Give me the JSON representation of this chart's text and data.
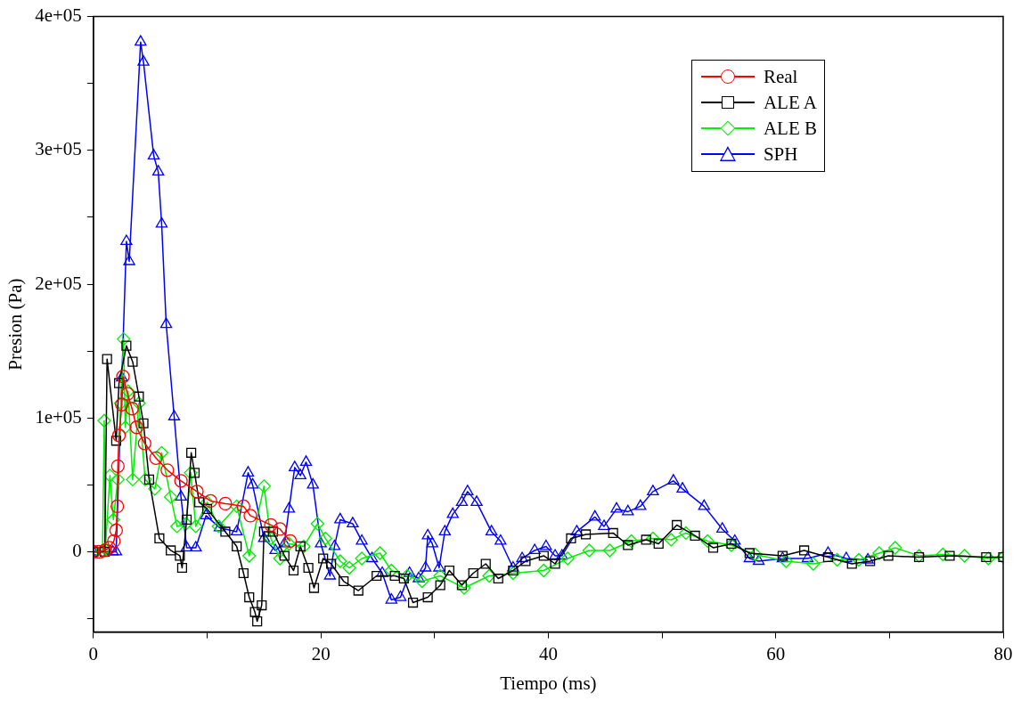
{
  "chart_data": {
    "type": "line",
    "xlabel": "Tiempo (ms)",
    "ylabel": "Presion (Pa)",
    "xlim": [
      0,
      80
    ],
    "ylim": [
      -60000,
      400000
    ],
    "xticks": [
      0,
      {
        "value": 10,
        "label": null
      },
      20,
      {
        "value": 30,
        "label": null
      },
      40,
      {
        "value": 50,
        "label": null
      },
      60,
      {
        "value": 70,
        "label": null
      },
      80
    ],
    "yticks": [
      {
        "value": -50000,
        "label": null
      },
      {
        "value": 0,
        "label": "0"
      },
      {
        "value": 50000,
        "label": null
      },
      {
        "value": 100000,
        "label": "1e+05"
      },
      {
        "value": 150000,
        "label": null
      },
      {
        "value": 200000,
        "label": "2e+05"
      },
      {
        "value": 250000,
        "label": null
      },
      {
        "value": 300000,
        "label": "3e+05"
      },
      {
        "value": 350000,
        "label": null
      },
      {
        "value": 400000,
        "label": "4e+05"
      }
    ],
    "grid": false,
    "legend": "top right",
    "line_style": "solid",
    "series": [
      {
        "name": "Real",
        "color": "#ff0000",
        "marker": "circle",
        "x": [
          0,
          0.5,
          1.0,
          1.4,
          1.8,
          2.0,
          2.1,
          2.15,
          2.25,
          2.5,
          2.6,
          3.0,
          3.4,
          3.8,
          4.5,
          5.5,
          6.5,
          7.7,
          9.1,
          10.3,
          11.6,
          13.2,
          13.8,
          15.6,
          16.4,
          17.3
        ],
        "values": [
          0,
          0,
          1000,
          3000,
          8000,
          16000,
          34000,
          64000,
          87000,
          110000,
          131000,
          118000,
          107000,
          93000,
          81000,
          70000,
          61000,
          53000,
          45000,
          38000,
          36000,
          34000,
          27000,
          20000,
          17000,
          8000
        ]
      },
      {
        "name": "ALE A",
        "color": "#000000",
        "marker": "square",
        "x": [
          0,
          1.0,
          1.2,
          2.0,
          2.25,
          2.9,
          3.45,
          4.0,
          4.4,
          4.9,
          5.8,
          6.8,
          7.6,
          7.8,
          8.2,
          8.6,
          8.9,
          9.3,
          10.0,
          11.6,
          12.6,
          13.2,
          13.7,
          14.2,
          14.4,
          14.8,
          15.0,
          15.8,
          16.8,
          17.6,
          18.2,
          18.9,
          19.4,
          20.2,
          20.9,
          22.0,
          23.3,
          24.9,
          26.5,
          27.3,
          28.1,
          29.4,
          30.5,
          31.3,
          32.4,
          33.4,
          34.5,
          35.6,
          36.9,
          38.0,
          39.6,
          40.6,
          42.0,
          43.3,
          45.7,
          47.0,
          48.6,
          49.7,
          51.3,
          52.9,
          54.5,
          56.1,
          57.7,
          60.6,
          62.5,
          64.6,
          66.7,
          68.3,
          69.9,
          72.6,
          75.3,
          78.5,
          80
        ],
        "values": [
          0,
          0,
          144000,
          83000,
          126000,
          154000,
          142000,
          116000,
          96000,
          54000,
          10000,
          1000,
          -3000,
          -12000,
          24000,
          74000,
          59000,
          37000,
          32000,
          15000,
          4000,
          -16000,
          -34000,
          -45000,
          -52000,
          -40000,
          15000,
          15000,
          -3000,
          -14000,
          4000,
          -12000,
          -27000,
          -5000,
          -9000,
          -22000,
          -29000,
          -18000,
          -18000,
          -20000,
          -38000,
          -34000,
          -25000,
          -14000,
          -25000,
          -16000,
          -9000,
          -20000,
          -14000,
          -7000,
          -3000,
          -9000,
          10000,
          13000,
          14000,
          5000,
          9000,
          6000,
          20000,
          12000,
          3000,
          6000,
          -1000,
          -3000,
          1000,
          -4000,
          -9000,
          -7000,
          -3000,
          -4000,
          -3000,
          -4000,
          -4000
        ]
      },
      {
        "name": "ALE B",
        "color": "#00ee00",
        "marker": "diamond",
        "x": [
          0,
          0.8,
          0.95,
          1.05,
          1.45,
          1.75,
          2.15,
          2.4,
          2.65,
          2.8,
          3.05,
          3.45,
          4.0,
          4.55,
          5.4,
          6.0,
          6.8,
          7.35,
          8.15,
          8.55,
          9.0,
          10.0,
          11.0,
          12.6,
          13.7,
          15.0,
          15.6,
          16.4,
          17.2,
          18.5,
          19.7,
          20.4,
          21.7,
          22.5,
          23.6,
          25.2,
          26.2,
          27.6,
          28.9,
          30.5,
          32.6,
          34.8,
          36.9,
          39.6,
          41.7,
          43.6,
          45.4,
          47.3,
          49.2,
          50.8,
          52.1,
          54.0,
          56.1,
          58.2,
          60.9,
          63.3,
          65.4,
          67.3,
          69.1,
          70.5,
          72.6,
          74.7,
          76.6,
          78.7,
          80
        ],
        "values": [
          0,
          0,
          98000,
          2000,
          57000,
          24000,
          54000,
          111000,
          159000,
          93000,
          120000,
          54000,
          111000,
          54000,
          47000,
          74000,
          41000,
          19000,
          21000,
          59000,
          19000,
          37000,
          19000,
          34000,
          -3000,
          49000,
          10000,
          -5000,
          6000,
          4000,
          21000,
          10000,
          -7000,
          -12000,
          -5000,
          -1000,
          -14000,
          -18000,
          -22000,
          -18000,
          -27000,
          -18000,
          -16000,
          -14000,
          -5000,
          1000,
          1000,
          8000,
          10000,
          9000,
          14000,
          8000,
          5000,
          -2000,
          -7000,
          -9000,
          -6000,
          -6000,
          -1000,
          3000,
          -3000,
          -2000,
          -3000,
          -5000,
          -4000
        ]
      },
      {
        "name": "SPH",
        "color": "#0000ff",
        "marker": "triangle",
        "x": [
          0,
          1.7,
          2.0,
          2.5,
          2.9,
          3.15,
          4.15,
          4.4,
          5.3,
          5.7,
          6.0,
          6.4,
          7.1,
          7.7,
          8.2,
          9.0,
          9.9,
          11.1,
          12.6,
          13.6,
          14.0,
          15.0,
          16.0,
          16.8,
          17.2,
          17.7,
          18.2,
          18.7,
          19.3,
          20.0,
          20.8,
          21.2,
          21.7,
          22.8,
          23.6,
          24.5,
          25.4,
          26.2,
          27.0,
          27.8,
          28.6,
          29.2,
          29.4,
          29.8,
          30.4,
          30.9,
          31.6,
          32.4,
          32.9,
          33.7,
          35.0,
          35.8,
          36.9,
          37.7,
          38.8,
          39.8,
          40.6,
          41.2,
          42.5,
          44.1,
          44.9,
          46.0,
          47.0,
          48.1,
          49.2,
          51.0,
          51.8,
          53.7,
          55.3,
          56.4,
          57.7,
          58.5,
          60.6,
          62.8,
          64.6,
          66.2,
          68.1
        ],
        "values": [
          0,
          0,
          0,
          130000,
          232000,
          217000,
          381000,
          366000,
          296000,
          284000,
          245000,
          170000,
          101000,
          41000,
          3000,
          3000,
          27000,
          18000,
          15000,
          59000,
          50000,
          10000,
          1000,
          6000,
          32000,
          63000,
          57000,
          67000,
          50000,
          6000,
          -18000,
          4000,
          24000,
          21000,
          8000,
          -5000,
          -16000,
          -36000,
          -34000,
          -16000,
          -20000,
          -12000,
          12000,
          6000,
          -12000,
          15000,
          28000,
          37000,
          45000,
          37000,
          15000,
          8000,
          -12000,
          -5000,
          1000,
          4000,
          -3000,
          -3000,
          15000,
          26000,
          19000,
          32000,
          30000,
          34000,
          45000,
          53000,
          47000,
          34000,
          17000,
          8000,
          -5000,
          -7000,
          -5000,
          -5000,
          -1000,
          -5000,
          -6000
        ]
      }
    ]
  }
}
